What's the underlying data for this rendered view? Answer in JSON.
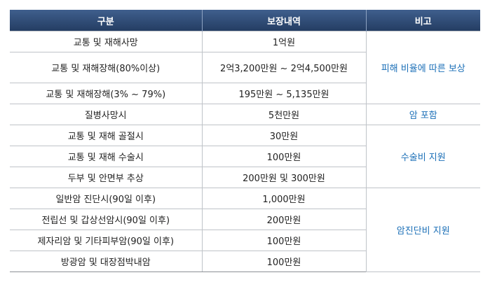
{
  "table": {
    "headers": [
      "구분",
      "보장내역",
      "비고"
    ],
    "rows": [
      {
        "category": "교통 및 재해사망",
        "coverage": "1억원"
      },
      {
        "category": "교통 및 재해장해(80%이상)",
        "coverage": "2억3,200만원 ~ 2억4,500만원"
      },
      {
        "category": "교통 및 재해장해(3% ~ 79%)",
        "coverage": "195만원 ~ 5,135만원"
      },
      {
        "category": "질병사망시",
        "coverage": "5천만원"
      },
      {
        "category": "교통 및 재해 골절시",
        "coverage": "30만원"
      },
      {
        "category": "교통 및 재해 수술시",
        "coverage": "100만원"
      },
      {
        "category": "두부 및 안면부 추상",
        "coverage": "200만원 및 300만원"
      },
      {
        "category": "일반암 진단시(90일 이후)",
        "coverage": "1,000만원"
      },
      {
        "category": "전립선 및 갑상선암시(90일 이후)",
        "coverage": "200만원"
      },
      {
        "category": "제자리암 및 기타피부암(90일 이후)",
        "coverage": "100만원"
      },
      {
        "category": "방광암 및 대장점박내암",
        "coverage": "100만원"
      }
    ],
    "notes": [
      "피해 비율에 따른 보상",
      "암 포함",
      "수술비 지원",
      "암진단비 지원"
    ],
    "note_color": "#1b6fb7",
    "header_color": "#2e4a75"
  }
}
